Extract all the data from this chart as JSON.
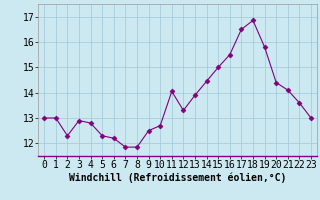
{
  "x": [
    0,
    1,
    2,
    3,
    4,
    5,
    6,
    7,
    8,
    9,
    10,
    11,
    12,
    13,
    14,
    15,
    16,
    17,
    18,
    19,
    20,
    21,
    22,
    23
  ],
  "y": [
    13.0,
    13.0,
    12.3,
    12.9,
    12.8,
    12.3,
    12.2,
    11.85,
    11.85,
    12.5,
    12.7,
    14.05,
    13.3,
    13.9,
    14.45,
    15.0,
    15.5,
    16.5,
    16.85,
    15.8,
    14.4,
    14.1,
    13.6,
    13.0
  ],
  "ylim": [
    11.5,
    17.5
  ],
  "yticks": [
    12,
    13,
    14,
    15,
    16,
    17
  ],
  "xticks": [
    0,
    1,
    2,
    3,
    4,
    5,
    6,
    7,
    8,
    9,
    10,
    11,
    12,
    13,
    14,
    15,
    16,
    17,
    18,
    19,
    20,
    21,
    22,
    23
  ],
  "xlabel": "Windchill (Refroidissement éolien,°C)",
  "line_color": "#800080",
  "marker": "D",
  "marker_size": 2.5,
  "bg_color": "#cce8f0",
  "grid_color": "#b0d8e8",
  "label_fontsize": 7,
  "tick_fontsize": 7,
  "xlim_left": -0.5,
  "xlim_right": 23.5
}
